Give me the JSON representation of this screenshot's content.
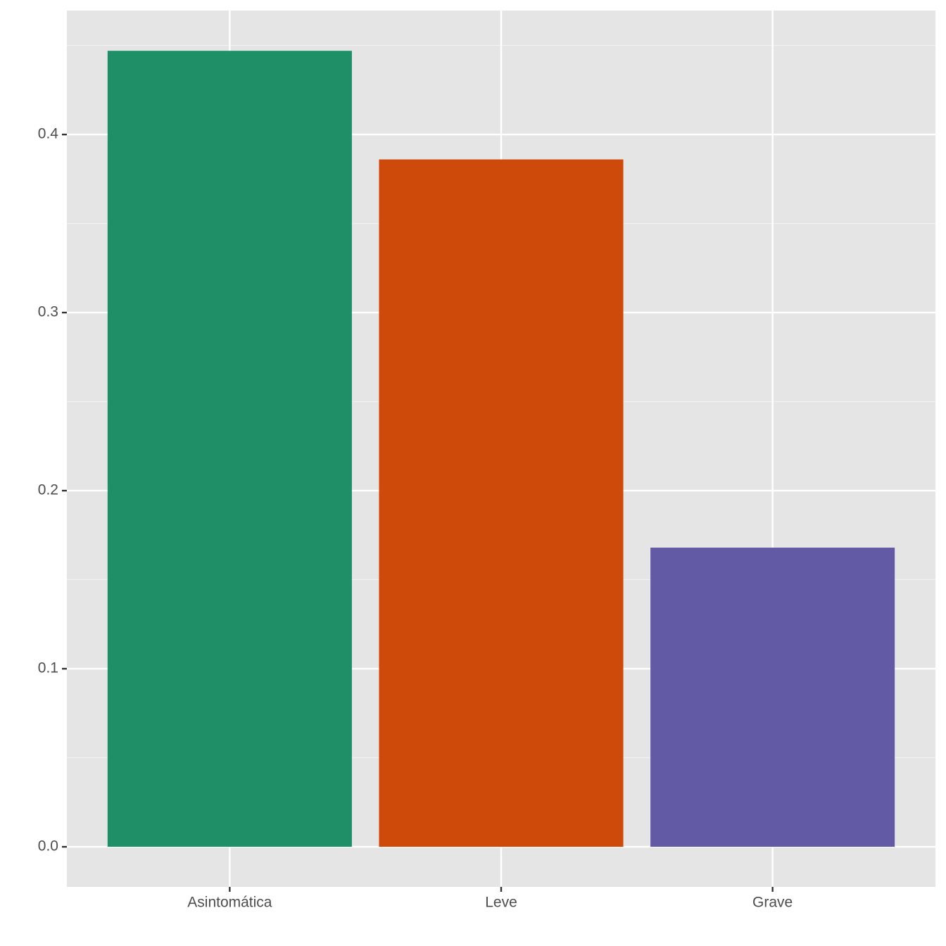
{
  "chart_data": {
    "type": "bar",
    "categories": [
      "Asintomática",
      "Leve",
      "Grave"
    ],
    "values": [
      0.447,
      0.386,
      0.168
    ],
    "colors": [
      "#1e8f67",
      "#cd4a0a",
      "#625aa5"
    ],
    "ylim": [
      -0.0225,
      0.4696
    ],
    "yticks": [
      {
        "value": 0,
        "label": "0.0"
      },
      0.1,
      0.2,
      0.3,
      0.4
    ],
    "yminorticks": [
      0.05,
      0.15,
      0.25,
      0.35,
      0.45
    ],
    "grid": true
  }
}
